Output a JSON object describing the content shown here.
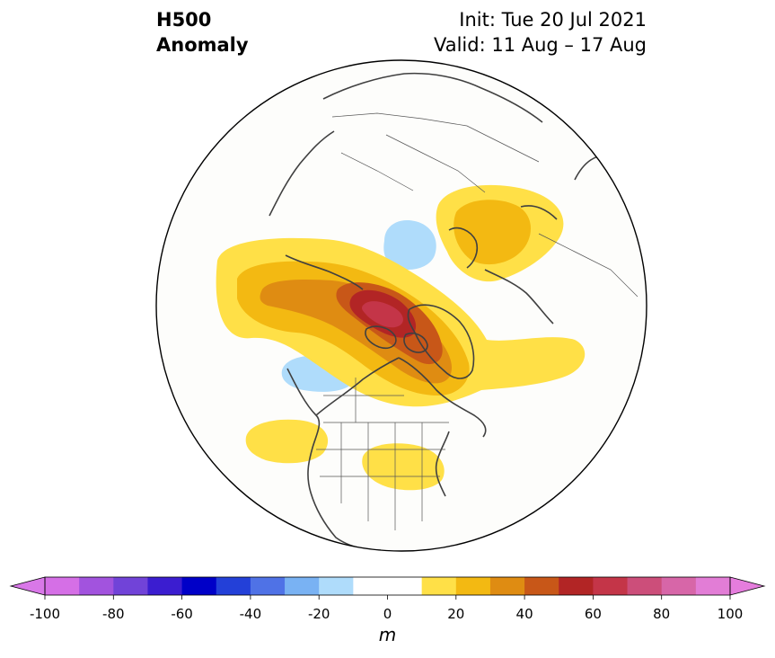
{
  "title": {
    "line1": "H500",
    "line2": "Anomaly"
  },
  "init": {
    "line1": "Init: Tue 20 Jul 2021",
    "line2": "Valid: 11 Aug – 17 Aug"
  },
  "colorbar": {
    "unit": "m",
    "ticks": [
      "-100",
      "-80",
      "-60",
      "-40",
      "-20",
      "0",
      "20",
      "40",
      "60",
      "80",
      "100"
    ],
    "colors": [
      "#d56fe6",
      "#a253de",
      "#7143d8",
      "#3b1dd0",
      "#0000c8",
      "#2340d8",
      "#4f72e6",
      "#79b2f3",
      "#afdcfb",
      "#ffffff",
      "#ffffff",
      "#ffe047",
      "#f3b912",
      "#df8c12",
      "#c85718",
      "#b22525",
      "#c43548",
      "#cc4e7a",
      "#d766a8",
      "#e27dd6"
    ],
    "extend_low_color": "#d978e8",
    "extend_high_color": "#e57ddd"
  },
  "anomaly_colors": {
    "pos10": "#ffe047",
    "pos20": "#f3b912",
    "pos30": "#df8c12",
    "pos40": "#c85718",
    "pos50": "#b22525",
    "pos60": "#c43548",
    "neg10": "#afdcfb"
  }
}
